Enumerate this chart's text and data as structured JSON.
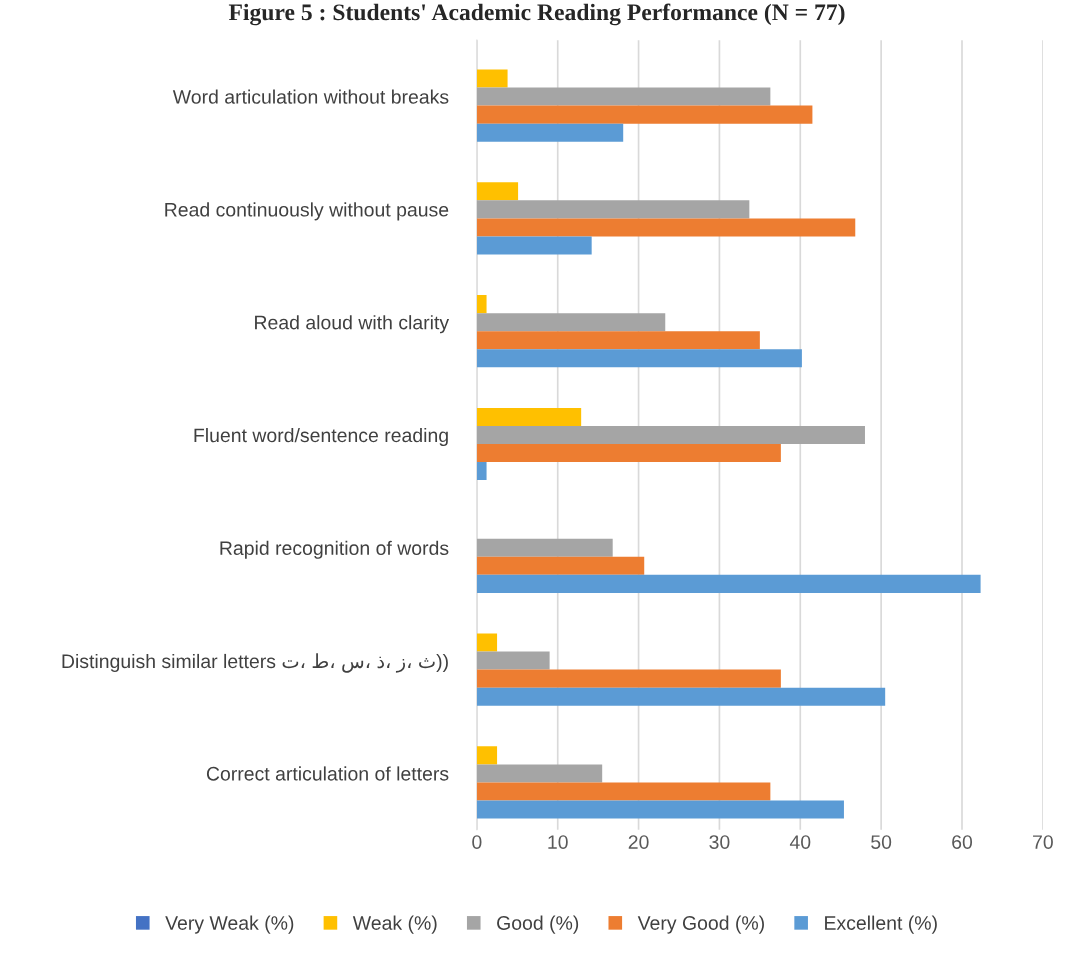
{
  "chart_data": {
    "type": "bar",
    "orientation": "horizontal",
    "title": "Figure 5 : Students' Academic Reading Performance (N = 77)",
    "categories": [
      "Word articulation without breaks",
      "Read continuously without pause",
      "Read aloud with clarity",
      "Fluent word/sentence reading",
      "Rapid recognition of words",
      "Distinguish similar letters ت، ط، س، ذ، ز، ث))",
      "Correct articulation of letters"
    ],
    "series": [
      {
        "name": "Very Weak (%)",
        "color": "#4472c4",
        "values": [
          null,
          null,
          null,
          null,
          null,
          null,
          null
        ]
      },
      {
        "name": "Weak (%)",
        "color": "#ffc000",
        "values": [
          3.8,
          5.1,
          1.2,
          12.9,
          null,
          2.5,
          2.5
        ]
      },
      {
        "name": "Good (%)",
        "color": "#a5a5a5",
        "values": [
          36.3,
          33.7,
          23.3,
          48.0,
          16.8,
          9.0,
          15.5
        ]
      },
      {
        "name": "Very Good (%)",
        "color": "#ed7d31",
        "values": [
          41.5,
          46.8,
          35.0,
          37.6,
          20.7,
          37.6,
          36.3
        ]
      },
      {
        "name": "Excellent (%)",
        "color": "#5b9bd5",
        "values": [
          18.1,
          14.2,
          40.2,
          1.2,
          62.3,
          50.5,
          45.4
        ]
      }
    ],
    "xlim": [
      0,
      70
    ],
    "xticks": [
      0,
      10,
      20,
      30,
      40,
      50,
      60,
      70
    ],
    "grid": "x",
    "legend": "bottom"
  }
}
